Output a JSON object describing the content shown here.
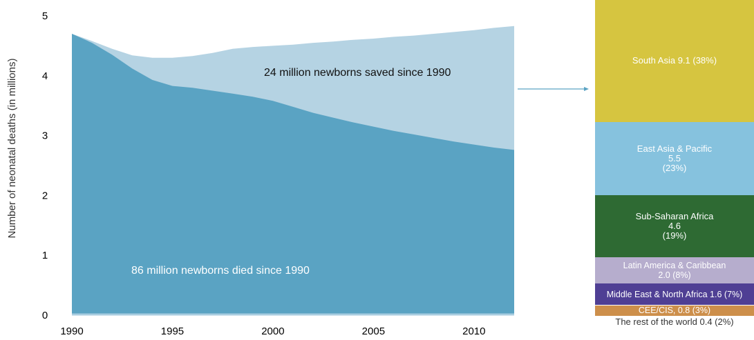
{
  "chart_data": [
    {
      "type": "area",
      "ylabel": "Number of neonatal deaths (in millions)",
      "xlabel": "",
      "xlim": [
        1990,
        2012
      ],
      "ylim": [
        0,
        5
      ],
      "x_ticks": [
        "1990",
        "1995",
        "2000",
        "2005",
        "2010"
      ],
      "y_ticks": [
        "0",
        "1",
        "2",
        "3",
        "4",
        "5"
      ],
      "x": [
        1990,
        1991,
        1992,
        1993,
        1994,
        1995,
        1996,
        1997,
        1998,
        1999,
        2000,
        2001,
        2002,
        2003,
        2004,
        2005,
        2006,
        2007,
        2008,
        2009,
        2010,
        2011,
        2012
      ],
      "series": [
        {
          "values": [
            4.7,
            4.55,
            4.35,
            4.12,
            3.93,
            3.83,
            3.8,
            3.75,
            3.7,
            3.65,
            3.58,
            3.48,
            3.38,
            3.3,
            3.22,
            3.15,
            3.08,
            3.02,
            2.96,
            2.9,
            2.85,
            2.8,
            2.76
          ],
          "color": "#5aa3c3"
        },
        {
          "values": [
            4.7,
            4.58,
            4.45,
            4.34,
            4.3,
            4.3,
            4.33,
            4.38,
            4.45,
            4.48,
            4.5,
            4.52,
            4.55,
            4.57,
            4.6,
            4.62,
            4.65,
            4.67,
            4.7,
            4.73,
            4.76,
            4.8,
            4.83
          ],
          "color": "#b5d3e3"
        }
      ],
      "annotations": [
        {
          "text": "24 million newborns saved since 1990"
        },
        {
          "text": "86 million newborns died since 1990"
        }
      ]
    },
    {
      "type": "bar",
      "stacked": true,
      "segments": [
        {
          "label": "South Asia 9.1 (38%)",
          "value": 9.1,
          "percent": 38,
          "color": "#d6c540"
        },
        {
          "label": "East Asia & Pacific",
          "value_text": "5.5",
          "pct_text": "(23%)",
          "value": 5.5,
          "percent": 23,
          "color": "#86c2de"
        },
        {
          "label": "Sub-Saharan Africa",
          "value_text": "4.6",
          "pct_text": "(19%)",
          "value": 4.6,
          "percent": 19,
          "color": "#2e6a33"
        },
        {
          "label": "Latin America & Caribbean",
          "value_text": "2.0 (8%)",
          "value": 2.0,
          "percent": 8,
          "color": "#b6adcd"
        },
        {
          "label": "Middle East & North Africa 1.6 (7%)",
          "value": 1.6,
          "percent": 7,
          "color": "#4f3f94"
        },
        {
          "label": "CEE/CIS, 0.8 (3%)",
          "value": 0.8,
          "percent": 3,
          "color": "#cd8f4b"
        },
        {
          "label": "The rest of the world 0.4 (2%)",
          "value": 0.4,
          "percent": 2,
          "color": "#9a9a9a"
        }
      ]
    }
  ]
}
